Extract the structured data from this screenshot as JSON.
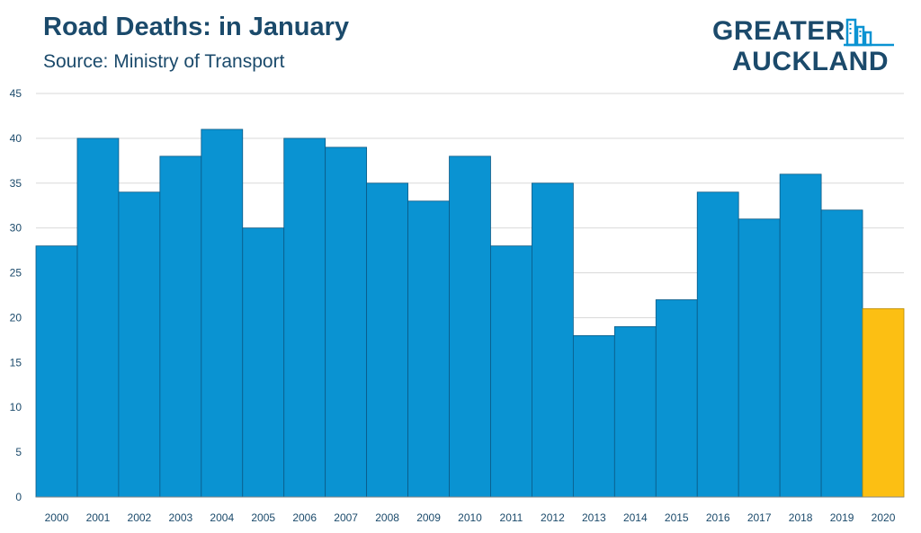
{
  "title": "Road Deaths: in January",
  "subtitle": "Source: Ministry of Transport",
  "logo": {
    "line1": "GREATER",
    "line2": "AUCKLAND",
    "icon": "city-skyline-icon"
  },
  "colors": {
    "bar": "#0a93d2",
    "highlight": "#fcbf13",
    "bar_edge": "#0b5a86",
    "highlight_edge": "#b88a00",
    "grid": "#d9d9d9",
    "text": "#1b4a6b"
  },
  "chart_data": {
    "type": "bar",
    "categories": [
      "2000",
      "2001",
      "2002",
      "2003",
      "2004",
      "2005",
      "2006",
      "2007",
      "2008",
      "2009",
      "2010",
      "2011",
      "2012",
      "2013",
      "2014",
      "2015",
      "2016",
      "2017",
      "2018",
      "2019",
      "2020"
    ],
    "values": [
      28,
      40,
      34,
      38,
      41,
      30,
      40,
      39,
      35,
      33,
      38,
      28,
      35,
      18,
      19,
      22,
      34,
      31,
      36,
      32,
      21
    ],
    "highlight_category": "2020",
    "title": "Road Deaths: in January",
    "subtitle": "Source: Ministry of Transport",
    "xlabel": "",
    "ylabel": "",
    "ylim": [
      0,
      45
    ],
    "yticks": [
      0,
      5,
      10,
      15,
      20,
      25,
      30,
      35,
      40,
      45
    ],
    "grid": true,
    "legend": "none"
  }
}
